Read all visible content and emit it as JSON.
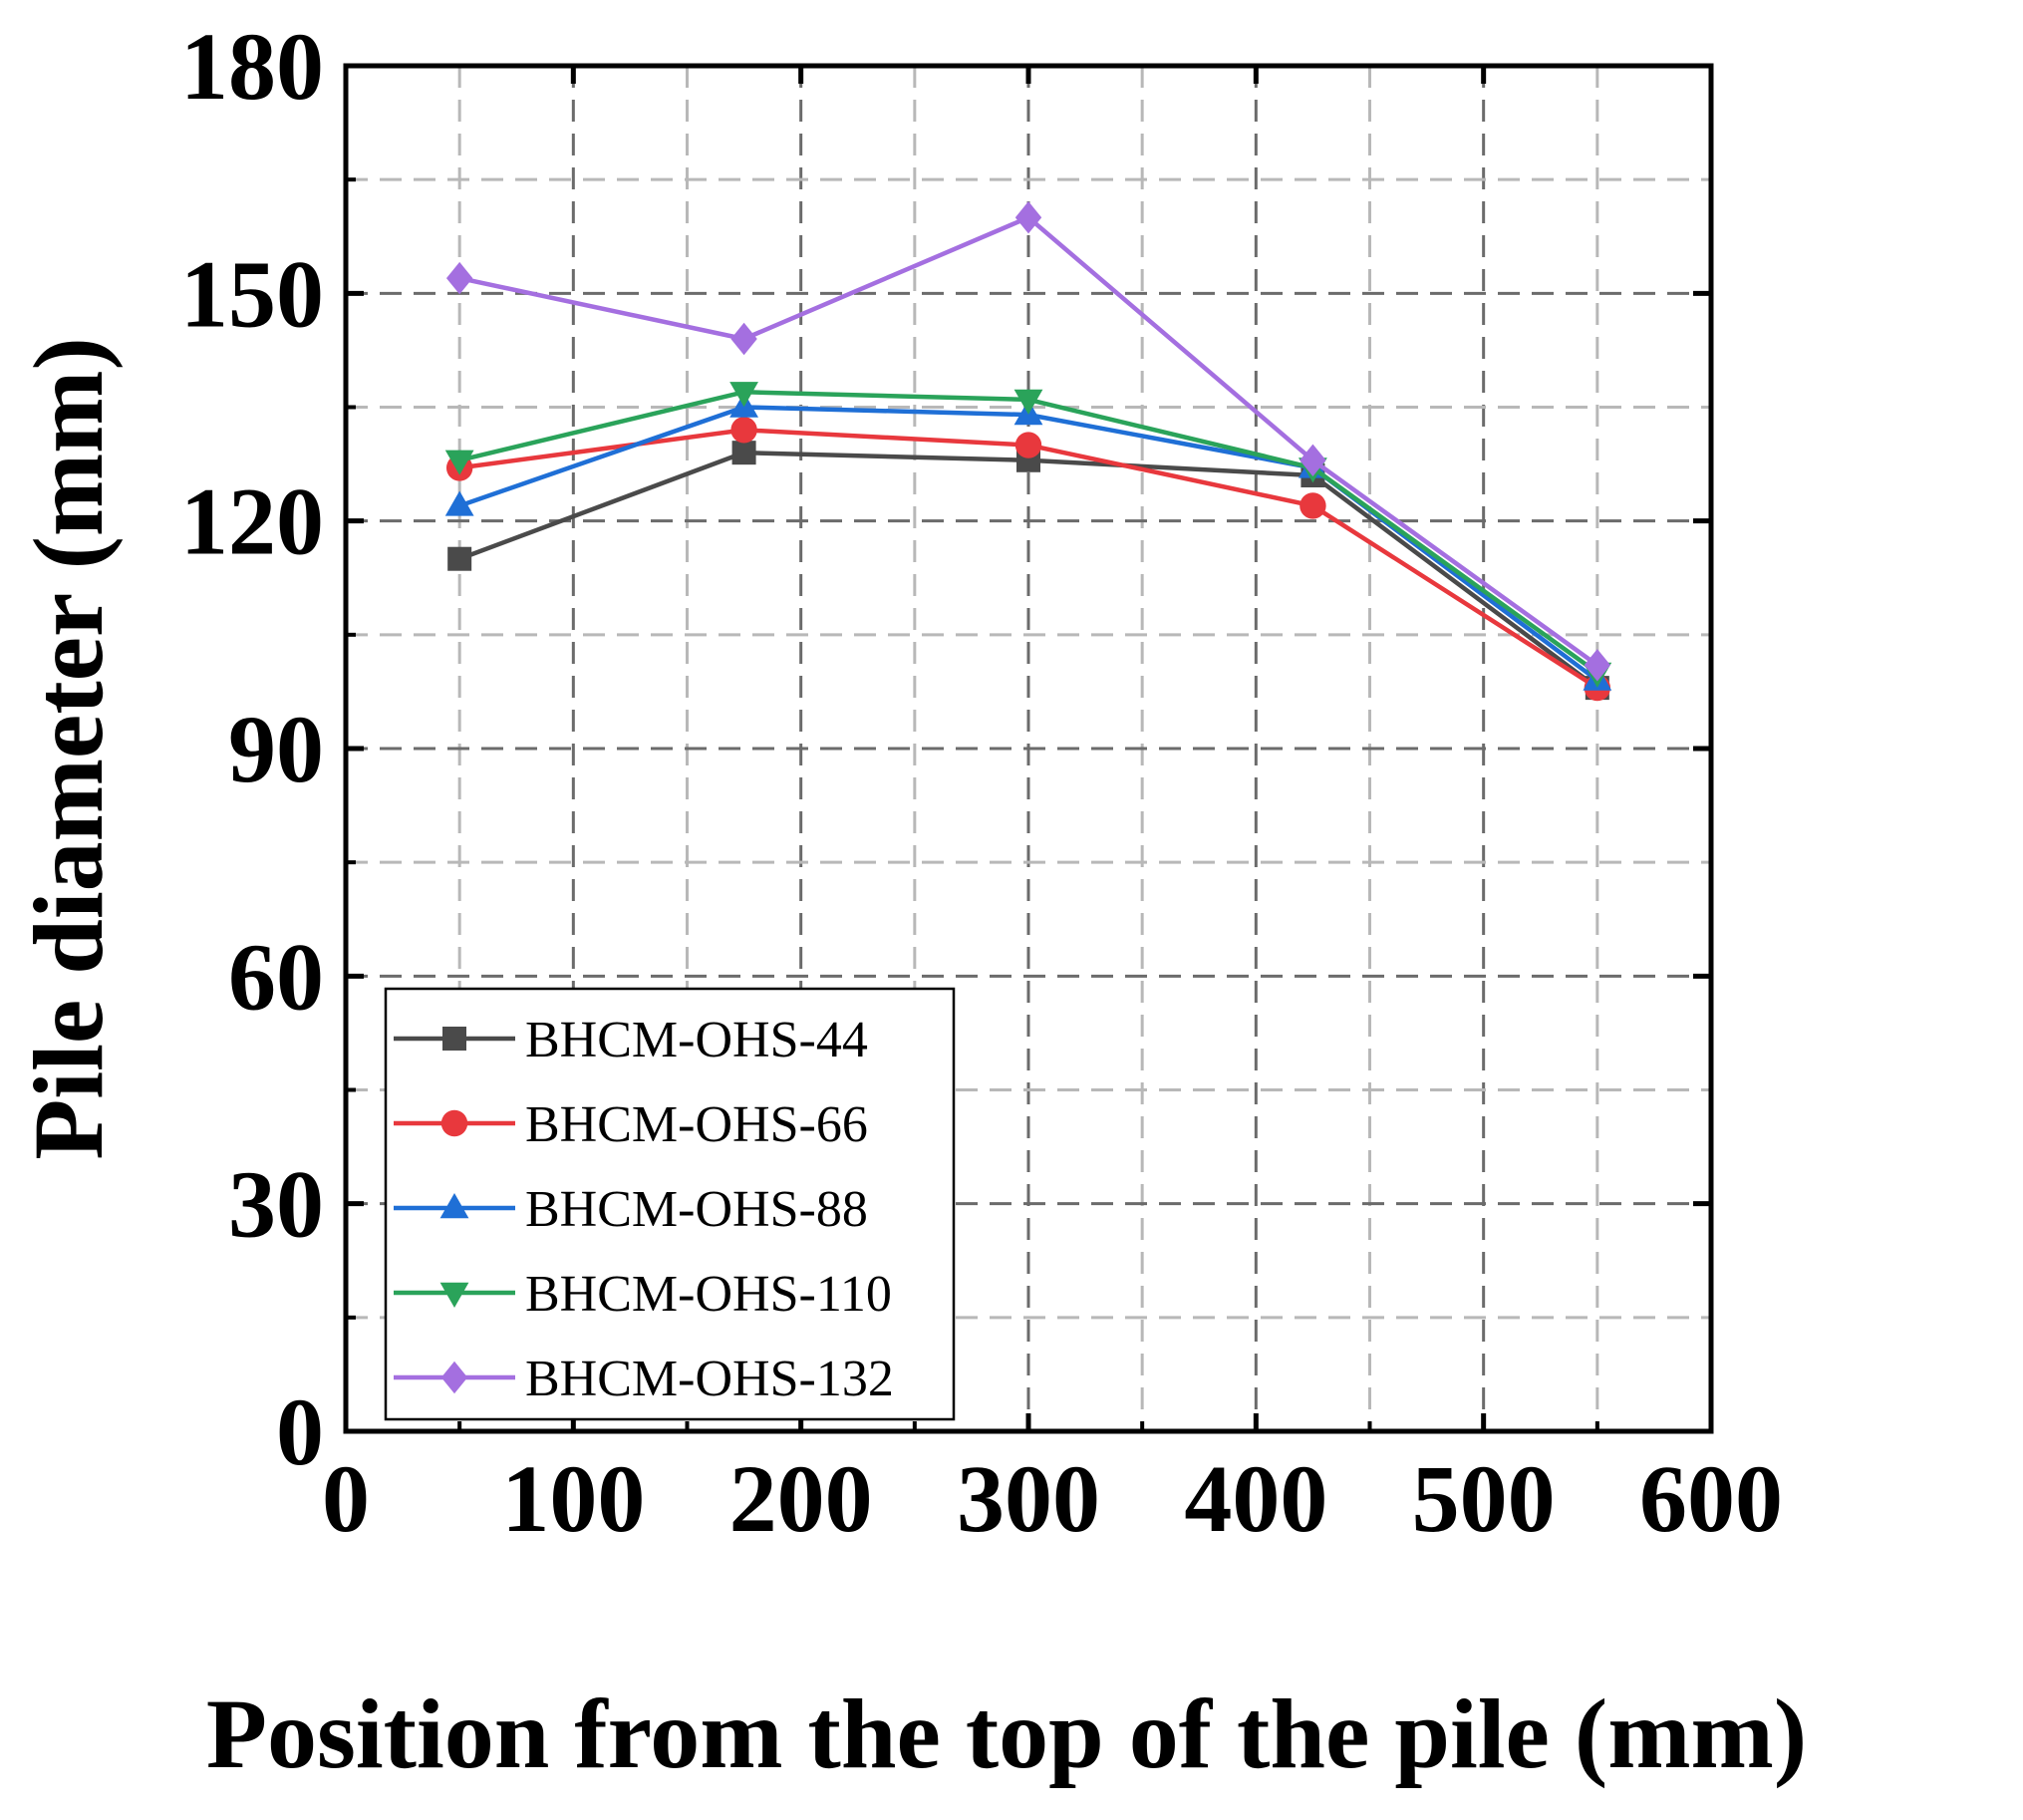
{
  "chart_data": {
    "type": "line",
    "title": "",
    "xlabel": "Position from the top of the pile (mm)",
    "ylabel": "Pile diameter (mm)",
    "xlim": [
      0,
      600
    ],
    "ylim": [
      0,
      180
    ],
    "xticks": [
      0,
      100,
      200,
      300,
      400,
      500,
      600
    ],
    "yticks": [
      0,
      30,
      60,
      90,
      120,
      150,
      180
    ],
    "grid": true,
    "legend_position": "bottom-left",
    "x": [
      50,
      175,
      300,
      425,
      550
    ],
    "series": [
      {
        "name": "BHCM-OHS-44",
        "color": "#4a4a4a",
        "marker": "square",
        "values": [
          115,
          129,
          128,
          126,
          98
        ]
      },
      {
        "name": "BHCM-OHS-66",
        "color": "#e8383d",
        "marker": "circle",
        "values": [
          127,
          132,
          130,
          122,
          98
        ]
      },
      {
        "name": "BHCM-OHS-88",
        "color": "#1f6fd6",
        "marker": "triangle-up",
        "values": [
          122,
          135,
          134,
          127,
          99
        ]
      },
      {
        "name": "BHCM-OHS-110",
        "color": "#2aa35a",
        "marker": "triangle-down",
        "values": [
          128,
          137,
          136,
          127,
          100
        ]
      },
      {
        "name": "BHCM-OHS-132",
        "color": "#a46fe0",
        "marker": "diamond",
        "values": [
          152,
          144,
          160,
          128,
          101
        ]
      }
    ]
  }
}
